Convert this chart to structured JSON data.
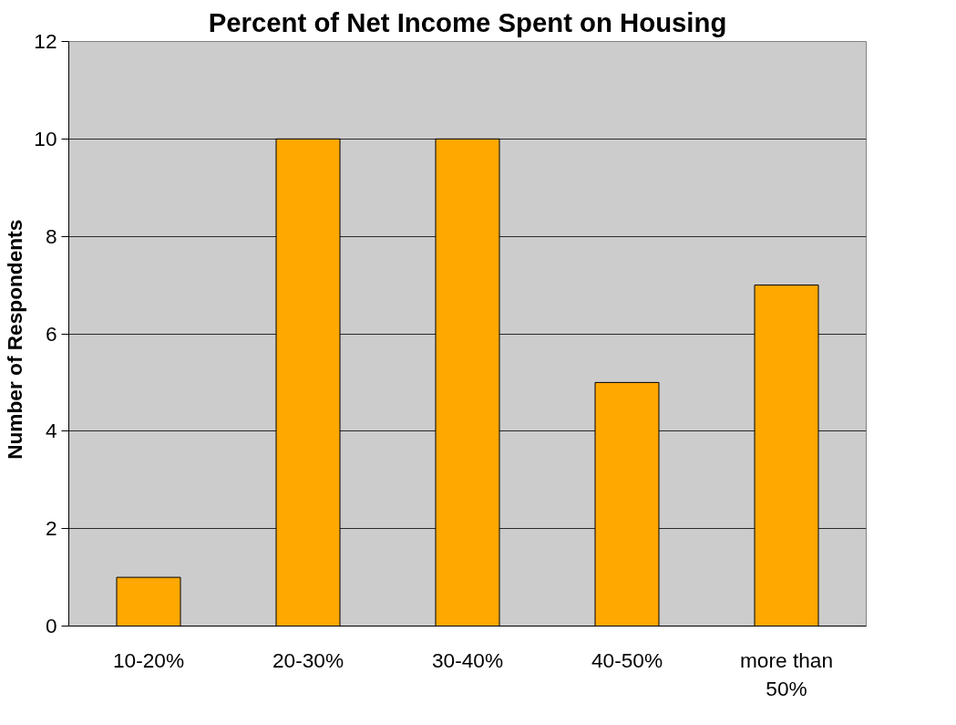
{
  "chart_data": {
    "type": "bar",
    "title": "Percent of Net Income Spent on Housing",
    "ylabel": "Number  of  Respondents",
    "categories": [
      "10-20%",
      "20-30%",
      "30-40%",
      "40-50%",
      "more than 50%"
    ],
    "values": [
      1,
      10,
      10,
      5,
      7
    ],
    "color": "#ffa800",
    "ylim": [
      0,
      12
    ],
    "yticks": [
      0,
      2,
      4,
      6,
      8,
      10,
      12
    ],
    "grid": "y"
  }
}
